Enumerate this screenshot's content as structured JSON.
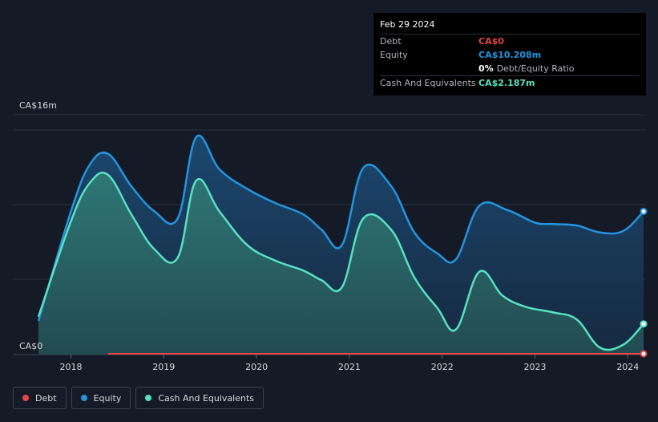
{
  "tooltip": {
    "date": "Feb 29 2024",
    "rows": [
      {
        "label": "Debt",
        "value": "CA$0",
        "color": "#e64545"
      },
      {
        "label": "Equity",
        "value": "CA$10.208m",
        "color": "#2394df"
      },
      {
        "label": "",
        "value": "0%",
        "extra": "Debt/Equity Ratio",
        "color": "#ffffff"
      },
      {
        "label": "Cash And Equivalents",
        "value": "CA$2.187m",
        "color": "#58e1c1"
      }
    ]
  },
  "legend": [
    {
      "label": "Debt",
      "color": "#e64545"
    },
    {
      "label": "Equity",
      "color": "#2394df"
    },
    {
      "label": "Cash And Equivalents",
      "color": "#58e1c1"
    }
  ],
  "chart_data": {
    "type": "area",
    "y_top_label": "CA$16m",
    "y_bottom_label": "CA$0",
    "ylim": [
      0,
      16
    ],
    "xlim": [
      2017.65,
      2024.17
    ],
    "x_ticks": [
      "2018",
      "2019",
      "2020",
      "2021",
      "2022",
      "2023",
      "2024"
    ],
    "x_tick_values": [
      2018,
      2019,
      2020,
      2021,
      2022,
      2023,
      2024
    ],
    "grid": true,
    "legend_position": "bottom-left",
    "series": [
      {
        "name": "Equity",
        "color": "#2394df",
        "x": [
          2017.65,
          2018.0,
          2018.2,
          2018.4,
          2018.65,
          2018.9,
          2019.15,
          2019.35,
          2019.6,
          2019.9,
          2020.2,
          2020.5,
          2020.7,
          2020.92,
          2021.15,
          2021.45,
          2021.7,
          2021.95,
          2022.15,
          2022.4,
          2022.7,
          2023.0,
          2023.2,
          2023.45,
          2023.7,
          2023.95,
          2024.17
        ],
        "values": [
          2.4,
          10.2,
          13.5,
          14.3,
          12.0,
          10.2,
          9.7,
          15.5,
          13.2,
          11.8,
          10.8,
          10.0,
          8.9,
          7.8,
          13.3,
          12.0,
          8.7,
          7.2,
          6.8,
          10.6,
          10.3,
          9.4,
          9.3,
          9.2,
          8.7,
          8.8,
          10.2
        ]
      },
      {
        "name": "Cash And Equivalents",
        "color": "#58e1c1",
        "x": [
          2017.65,
          2018.0,
          2018.2,
          2018.4,
          2018.65,
          2018.9,
          2019.15,
          2019.35,
          2019.6,
          2019.9,
          2020.2,
          2020.5,
          2020.7,
          2020.92,
          2021.15,
          2021.45,
          2021.7,
          2021.95,
          2022.15,
          2022.4,
          2022.65,
          2022.9,
          2023.2,
          2023.45,
          2023.7,
          2023.95,
          2024.17
        ],
        "values": [
          2.7,
          9.5,
          12.2,
          12.8,
          10.0,
          7.5,
          6.9,
          12.4,
          10.2,
          7.8,
          6.7,
          6.0,
          5.3,
          4.8,
          9.7,
          8.9,
          5.5,
          3.3,
          1.8,
          5.9,
          4.2,
          3.4,
          3.0,
          2.5,
          0.5,
          0.7,
          2.187
        ]
      },
      {
        "name": "Debt",
        "color": "#e64545",
        "x": [
          2018.4,
          2024.17
        ],
        "values": [
          0,
          0
        ]
      }
    ]
  }
}
